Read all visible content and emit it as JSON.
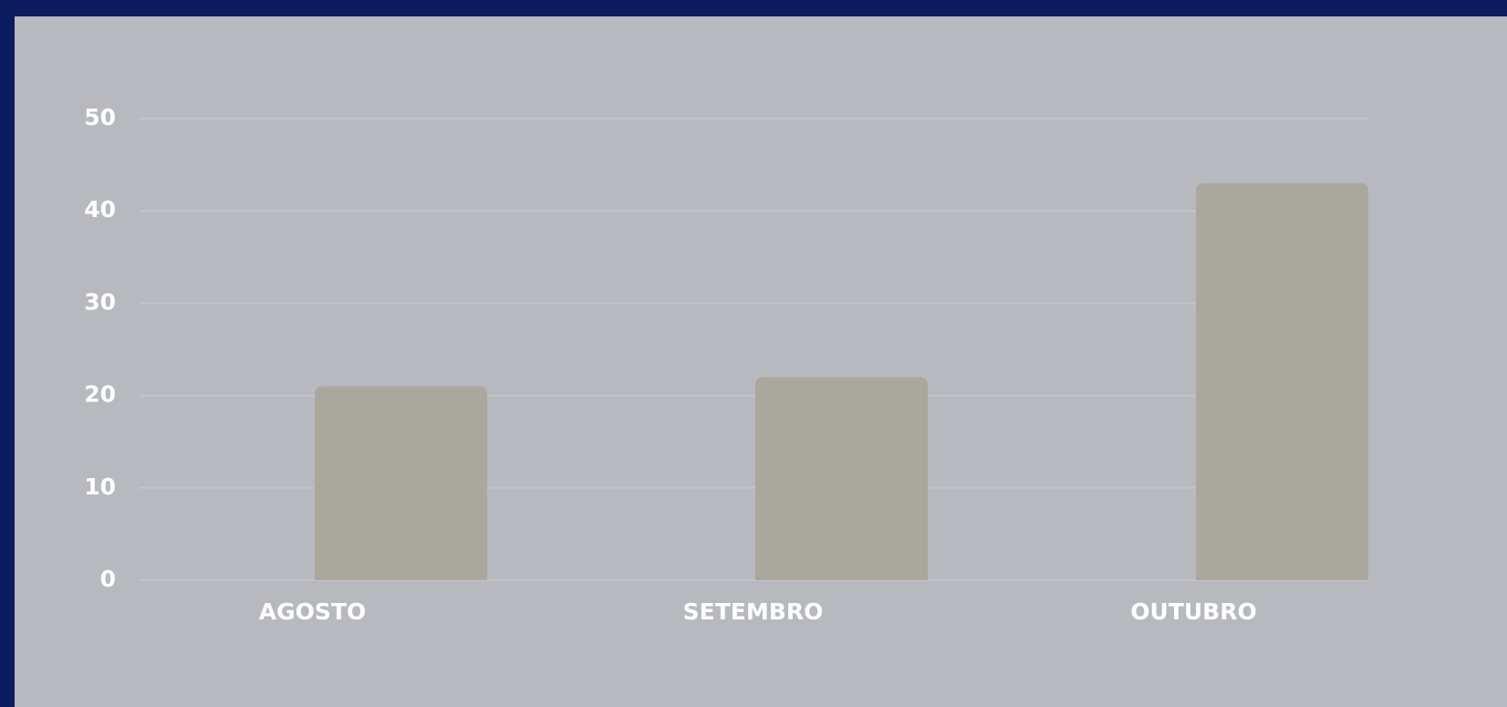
{
  "chart_data": {
    "type": "bar",
    "categories": [
      "AGOSTO",
      "SETEMBRO",
      "OUTUBRO"
    ],
    "values": [
      21,
      22,
      43
    ],
    "color": "#aaa79f",
    "ylim": [
      0,
      50
    ],
    "yticks": [
      0,
      10,
      20,
      30,
      40,
      50
    ],
    "grid": true
  }
}
